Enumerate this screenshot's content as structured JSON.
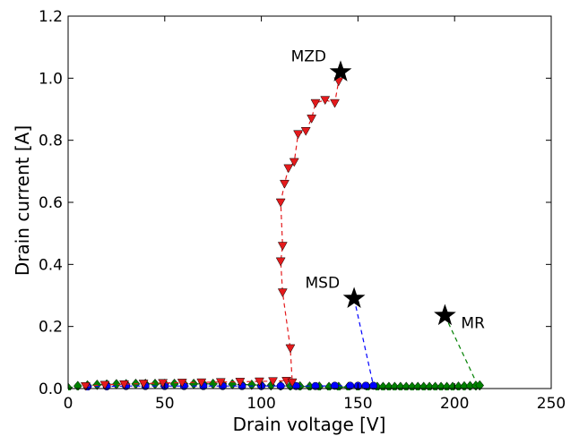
{
  "chart_data": {
    "type": "scatter",
    "title": "",
    "xlabel": "Drain voltage [V]",
    "ylabel": "Drain current [A]",
    "xlim": [
      0,
      250
    ],
    "ylim": [
      0,
      1.2
    ],
    "xticks": [
      0,
      50,
      100,
      150,
      200,
      250
    ],
    "yticks": [
      0.0,
      0.2,
      0.4,
      0.6,
      0.8,
      1.0,
      1.2
    ],
    "xtick_labels": [
      "0",
      "50",
      "100",
      "150",
      "200",
      "250"
    ],
    "ytick_labels": [
      "0.0",
      "0.2",
      "0.4",
      "0.6",
      "0.8",
      "1.0",
      "1.2"
    ],
    "grid": false,
    "series": [
      {
        "color": "#e41a1c",
        "marker": "triangle-down",
        "line": "dashed",
        "points": [
          [
            9,
            0.008
          ],
          [
            19,
            0.012
          ],
          [
            29,
            0.014
          ],
          [
            39,
            0.016
          ],
          [
            49,
            0.018
          ],
          [
            59,
            0.019
          ],
          [
            69,
            0.02
          ],
          [
            79,
            0.021
          ],
          [
            89,
            0.022
          ],
          [
            99,
            0.023
          ],
          [
            106,
            0.024
          ],
          [
            113,
            0.025
          ],
          [
            116,
            0.02
          ],
          [
            115,
            0.13
          ],
          [
            111,
            0.31
          ],
          [
            110,
            0.41
          ],
          [
            111,
            0.46
          ],
          [
            110,
            0.6
          ],
          [
            112,
            0.66
          ],
          [
            114,
            0.71
          ],
          [
            117,
            0.73
          ],
          [
            119,
            0.82
          ],
          [
            123,
            0.83
          ],
          [
            126,
            0.87
          ],
          [
            128,
            0.92
          ],
          [
            133,
            0.93
          ],
          [
            138,
            0.92
          ],
          [
            140,
            0.99
          ]
        ]
      },
      {
        "color": "#0000ff",
        "marker": "circle",
        "line": "dashed",
        "points": [
          [
            10,
            0.006
          ],
          [
            20,
            0.007
          ],
          [
            30,
            0.008
          ],
          [
            40,
            0.008
          ],
          [
            50,
            0.008
          ],
          [
            60,
            0.008
          ],
          [
            70,
            0.008
          ],
          [
            80,
            0.008
          ],
          [
            90,
            0.008
          ],
          [
            100,
            0.008
          ],
          [
            110,
            0.008
          ],
          [
            118,
            0.008
          ],
          [
            128,
            0.008
          ],
          [
            138,
            0.009
          ],
          [
            146,
            0.009
          ],
          [
            150,
            0.009
          ],
          [
            154,
            0.009
          ],
          [
            158,
            0.009
          ]
        ]
      },
      {
        "color": "#008000",
        "marker": "diamond",
        "line": "dashed",
        "points": [
          [
            0,
            0.002
          ],
          [
            5,
            0.008
          ],
          [
            10,
            0.01
          ],
          [
            15,
            0.012
          ],
          [
            20,
            0.013
          ],
          [
            25,
            0.014
          ],
          [
            30,
            0.014
          ],
          [
            35,
            0.015
          ],
          [
            40,
            0.015
          ],
          [
            45,
            0.015
          ],
          [
            50,
            0.015
          ],
          [
            55,
            0.015
          ],
          [
            60,
            0.015
          ],
          [
            65,
            0.015
          ],
          [
            70,
            0.015
          ],
          [
            75,
            0.015
          ],
          [
            80,
            0.015
          ],
          [
            85,
            0.014
          ],
          [
            90,
            0.013
          ],
          [
            95,
            0.012
          ],
          [
            100,
            0.011
          ],
          [
            105,
            0.01
          ],
          [
            110,
            0.009
          ],
          [
            115,
            0.008
          ],
          [
            120,
            0.007
          ],
          [
            125,
            0.006
          ],
          [
            130,
            0.006
          ],
          [
            135,
            0.005
          ],
          [
            140,
            0.005
          ],
          [
            145,
            0.005
          ],
          [
            150,
            0.005
          ],
          [
            155,
            0.005
          ],
          [
            160,
            0.005
          ],
          [
            163,
            0.005
          ],
          [
            166,
            0.005
          ],
          [
            169,
            0.005
          ],
          [
            172,
            0.005
          ],
          [
            175,
            0.005
          ],
          [
            178,
            0.005
          ],
          [
            181,
            0.005
          ],
          [
            184,
            0.005
          ],
          [
            187,
            0.005
          ],
          [
            190,
            0.005
          ],
          [
            193,
            0.005
          ],
          [
            196,
            0.005
          ],
          [
            199,
            0.005
          ],
          [
            202,
            0.006
          ],
          [
            205,
            0.007
          ],
          [
            208,
            0.008
          ],
          [
            211,
            0.009
          ],
          [
            213,
            0.01
          ]
        ]
      }
    ],
    "annotations": [
      {
        "label": "MZD",
        "x": 141,
        "y": 1.02,
        "color": "#e41a1c",
        "connect_to": [
          140,
          0.99
        ],
        "label_side": "left"
      },
      {
        "label": "MSD",
        "x": 148,
        "y": 0.29,
        "color": "#0000ff",
        "connect_to": [
          158,
          0.009
        ],
        "label_side": "left"
      },
      {
        "label": "MR",
        "x": 195,
        "y": 0.235,
        "color": "#008000",
        "connect_to": [
          212,
          0.01
        ],
        "label_side": "right"
      }
    ]
  }
}
